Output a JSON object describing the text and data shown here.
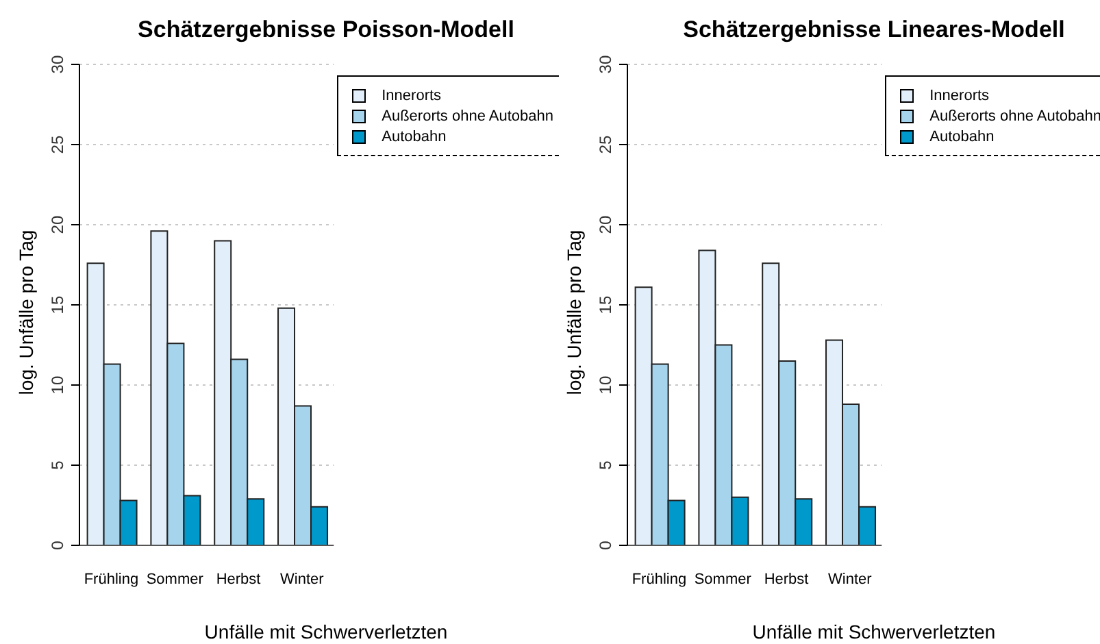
{
  "chart_data": [
    {
      "type": "bar",
      "title": "Schätzergebnisse Poisson-Modell",
      "xlabel": "Unfälle mit Schwerverletzten",
      "ylabel": "log. Unfälle pro Tag",
      "categories": [
        "Frühling",
        "Sommer",
        "Herbst",
        "Winter"
      ],
      "series": [
        {
          "name": "Innerorts",
          "color": "#e2effa",
          "values": [
            17.6,
            19.6,
            19.0,
            14.8
          ]
        },
        {
          "name": "Außerorts ohne Autobahn",
          "color": "#a6d4ec",
          "values": [
            11.3,
            12.6,
            11.6,
            8.7
          ]
        },
        {
          "name": "Autobahn",
          "color": "#0099cc",
          "values": [
            2.8,
            3.1,
            2.9,
            2.4
          ]
        }
      ],
      "ylim": [
        0,
        30
      ],
      "yticks": [
        0,
        5,
        10,
        15,
        20,
        25,
        30
      ],
      "grid": "y",
      "legend": "top right"
    },
    {
      "type": "bar",
      "title": "Schätzergebnisse Lineares-Modell",
      "xlabel": "Unfälle mit Schwerverletzten",
      "ylabel": "log. Unfälle pro Tag",
      "categories": [
        "Frühling",
        "Sommer",
        "Herbst",
        "Winter"
      ],
      "series": [
        {
          "name": "Innerorts",
          "color": "#e2effa",
          "values": [
            16.1,
            18.4,
            17.6,
            12.8
          ]
        },
        {
          "name": "Außerorts ohne Autobahn",
          "color": "#a6d4ec",
          "values": [
            11.3,
            12.5,
            11.5,
            8.8
          ]
        },
        {
          "name": "Autobahn",
          "color": "#0099cc",
          "values": [
            2.8,
            3.0,
            2.9,
            2.4
          ]
        }
      ],
      "ylim": [
        0,
        30
      ],
      "yticks": [
        0,
        5,
        10,
        15,
        20,
        25,
        30
      ],
      "grid": "y",
      "legend": "top right"
    }
  ]
}
